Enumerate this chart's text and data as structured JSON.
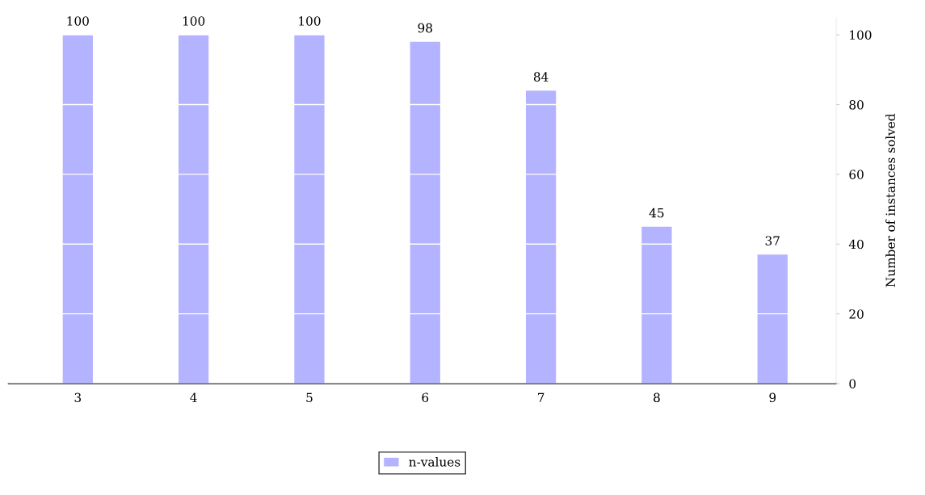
{
  "chart_data": {
    "type": "bar",
    "ylabel": "Number of instances solved",
    "categories": [
      "3",
      "4",
      "5",
      "6",
      "7",
      "8",
      "9"
    ],
    "series": [
      {
        "name": "n-values",
        "color": "#b3b3ff",
        "values": [
          100,
          100,
          100,
          98,
          84,
          45,
          37
        ]
      }
    ],
    "ylim": [
      0,
      105
    ],
    "yticks": [
      0,
      20,
      40,
      60,
      80,
      100
    ],
    "data_labels": true,
    "grid": "y",
    "legend": "bottom"
  }
}
